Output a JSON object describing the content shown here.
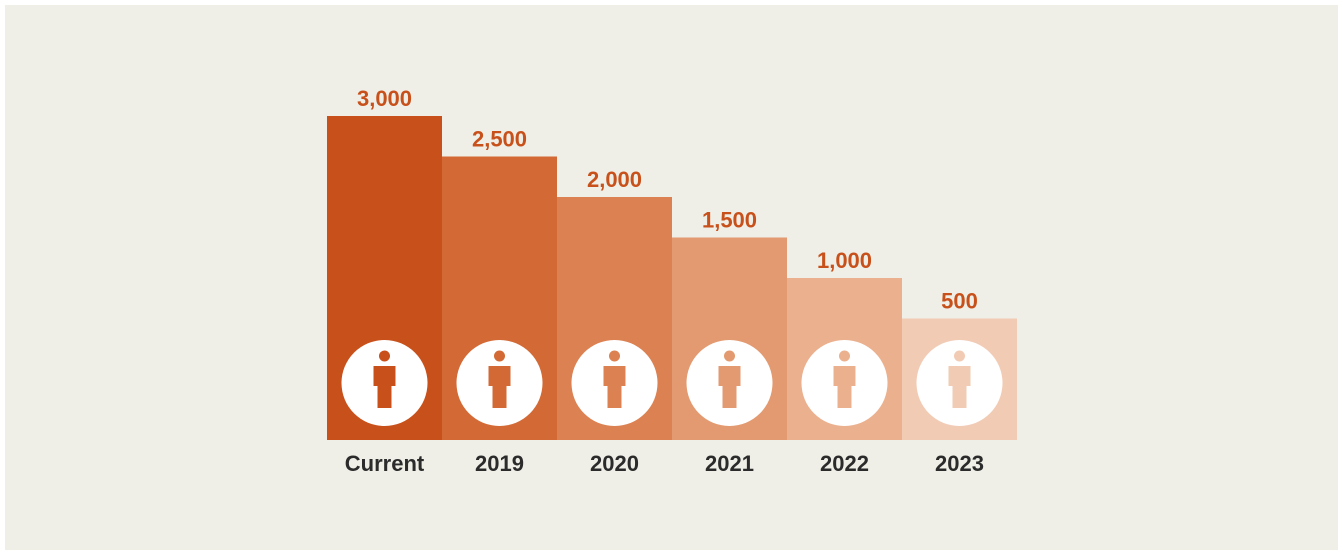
{
  "chart_data": {
    "type": "bar",
    "categories": [
      "Current",
      "2019",
      "2020",
      "2021",
      "2022",
      "2023"
    ],
    "values": [
      3000,
      2500,
      2000,
      1500,
      1000,
      500
    ],
    "value_labels": [
      "3,000",
      "2,500",
      "2,000",
      "1,500",
      "1,000",
      "500"
    ],
    "colors": [
      "#c8511b",
      "#d36a35",
      "#dc8152",
      "#e39a70",
      "#ebb08e",
      "#f2cbb5"
    ],
    "ylim": [
      -1000,
      3000
    ]
  }
}
